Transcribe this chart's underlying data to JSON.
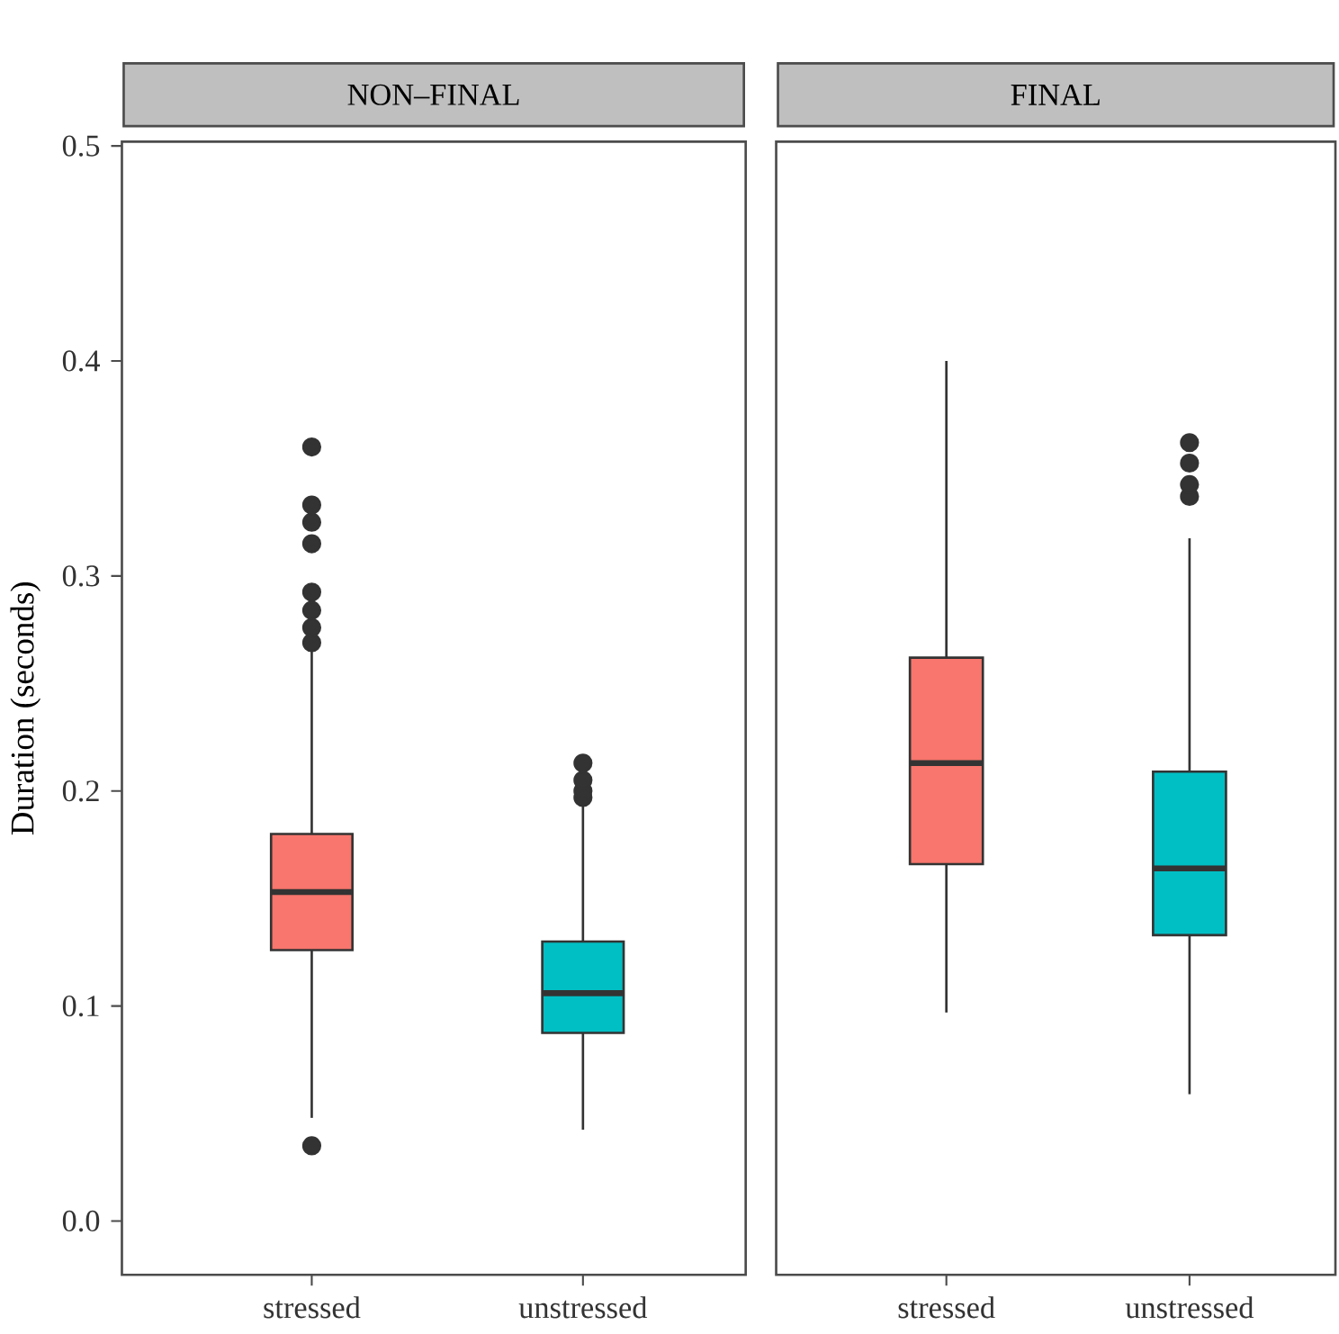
{
  "chart_data": [
    {
      "type": "box",
      "title": "NON–FINAL",
      "ylabel": "Duration (seconds)",
      "categories": [
        "stressed",
        "unstressed"
      ],
      "colors": [
        "#f8766d",
        "#00bfc4"
      ],
      "boxes": [
        {
          "low": 0.048,
          "q1": 0.126,
          "median": 0.153,
          "q3": 0.18,
          "high": 0.265,
          "outliers": [
            0.035,
            0.269,
            0.276,
            0.284,
            0.2925,
            0.315,
            0.325,
            0.333,
            0.36
          ]
        },
        {
          "low": 0.0425,
          "q1": 0.0875,
          "median": 0.106,
          "q3": 0.13,
          "high": 0.195,
          "outliers": [
            0.197,
            0.2,
            0.205,
            0.213
          ]
        }
      ],
      "ylim": [
        -0.025,
        0.502
      ],
      "yticks": [
        {
          "value": 0,
          "label": "0.0"
        },
        0.1,
        0.2,
        0.3,
        0.4,
        0.5
      ]
    },
    {
      "type": "box",
      "title": "FINAL",
      "categories": [
        "stressed",
        "unstressed"
      ],
      "colors": [
        "#f8766d",
        "#00bfc4"
      ],
      "boxes": [
        {
          "low": 0.097,
          "q1": 0.166,
          "median": 0.213,
          "q3": 0.262,
          "high": 0.4
        },
        {
          "low": 0.059,
          "q1": 0.133,
          "median": 0.164,
          "q3": 0.209,
          "high": 0.3175,
          "outliers": [
            0.337,
            0.3425,
            0.3525,
            0.362
          ]
        }
      ],
      "ylim": [
        -0.025,
        0.502
      ],
      "tick_labels": "x"
    }
  ]
}
